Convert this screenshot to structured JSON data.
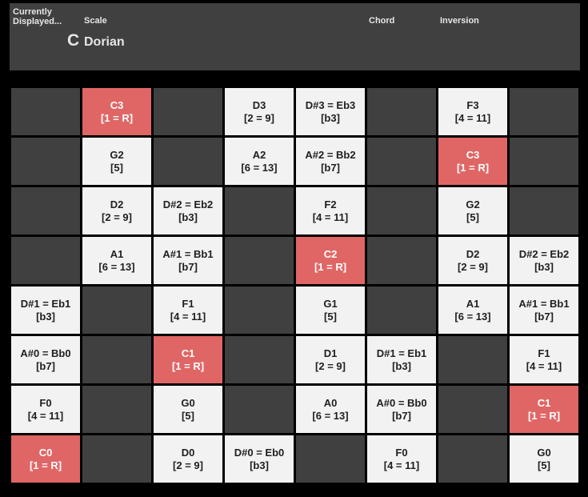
{
  "header": {
    "currently_displayed_label": "Currently Displayed...",
    "scale_label": "Scale",
    "chord_label": "Chord",
    "inversion_label": "Inversion",
    "root_note": "C",
    "scale_name": "Dorian",
    "chord_value": "",
    "inversion_value": ""
  },
  "colors": {
    "root": "#e06666",
    "note": "#f2f2f2",
    "empty": "#404040",
    "background": "#000000"
  },
  "grid": {
    "rows": [
      [
        null,
        {
          "note": "C3",
          "degree": "[1 = R]",
          "root": true
        },
        null,
        {
          "note": "D3",
          "degree": "[2 = 9]"
        },
        {
          "note": "D#3 = Eb3",
          "degree": "[b3]"
        },
        null,
        {
          "note": "F3",
          "degree": "[4 = 11]"
        },
        null
      ],
      [
        null,
        {
          "note": "G2",
          "degree": "[5]"
        },
        null,
        {
          "note": "A2",
          "degree": "[6 = 13]"
        },
        {
          "note": "A#2 = Bb2",
          "degree": "[b7]"
        },
        null,
        {
          "note": "C3",
          "degree": "[1 = R]",
          "root": true
        },
        null
      ],
      [
        null,
        {
          "note": "D2",
          "degree": "[2 = 9]"
        },
        {
          "note": "D#2 = Eb2",
          "degree": "[b3]"
        },
        null,
        {
          "note": "F2",
          "degree": "[4 = 11]"
        },
        null,
        {
          "note": "G2",
          "degree": "[5]"
        },
        null
      ],
      [
        null,
        {
          "note": "A1",
          "degree": "[6 = 13]"
        },
        {
          "note": "A#1 = Bb1",
          "degree": "[b7]"
        },
        null,
        {
          "note": "C2",
          "degree": "[1 = R]",
          "root": true
        },
        null,
        {
          "note": "D2",
          "degree": "[2 = 9]"
        },
        {
          "note": "D#2 = Eb2",
          "degree": "[b3]"
        }
      ],
      [
        {
          "note": "D#1 = Eb1",
          "degree": "[b3]"
        },
        null,
        {
          "note": "F1",
          "degree": "[4 = 11]"
        },
        null,
        {
          "note": "G1",
          "degree": "[5]"
        },
        null,
        {
          "note": "A1",
          "degree": "[6 = 13]"
        },
        {
          "note": "A#1 = Bb1",
          "degree": "[b7]"
        }
      ],
      [
        {
          "note": "A#0 = Bb0",
          "degree": "[b7]"
        },
        null,
        {
          "note": "C1",
          "degree": "[1 = R]",
          "root": true
        },
        null,
        {
          "note": "D1",
          "degree": "[2 = 9]"
        },
        {
          "note": "D#1 = Eb1",
          "degree": "[b3]"
        },
        null,
        {
          "note": "F1",
          "degree": "[4 = 11]"
        }
      ],
      [
        {
          "note": "F0",
          "degree": "[4 = 11]"
        },
        null,
        {
          "note": "G0",
          "degree": "[5]"
        },
        null,
        {
          "note": "A0",
          "degree": "[6 = 13]"
        },
        {
          "note": "A#0 = Bb0",
          "degree": "[b7]"
        },
        null,
        {
          "note": "C1",
          "degree": "[1 = R]",
          "root": true
        }
      ],
      [
        {
          "note": "C0",
          "degree": "[1 = R]",
          "root": true
        },
        null,
        {
          "note": "D0",
          "degree": "[2 = 9]"
        },
        {
          "note": "D#0 = Eb0",
          "degree": "[b3]"
        },
        null,
        {
          "note": "F0",
          "degree": "[4 = 11]"
        },
        null,
        {
          "note": "G0",
          "degree": "[5]"
        }
      ]
    ]
  }
}
